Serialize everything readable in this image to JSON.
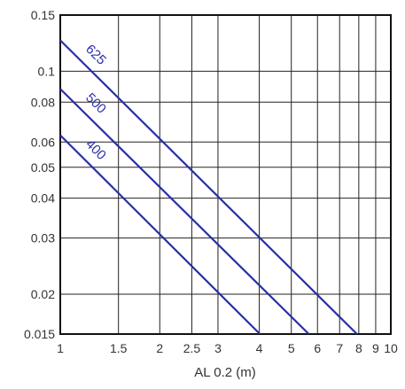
{
  "chart_data": {
    "type": "line",
    "title": "",
    "xlabel": "AL 0.2  (m)",
    "ylabel": "",
    "x_scale": "log",
    "y_scale": "log",
    "xlim": [
      1,
      10
    ],
    "ylim": [
      0.015,
      0.15
    ],
    "grid": true,
    "x_ticks": [
      1,
      1.5,
      2,
      2.5,
      3,
      4,
      5,
      6,
      7,
      8,
      9,
      10
    ],
    "x_tick_labels": [
      "1",
      "1.5",
      "2",
      "2.5",
      "3",
      "4",
      "5",
      "6",
      "7",
      "8",
      "9",
      "10"
    ],
    "y_ticks": [
      0.015,
      0.02,
      0.03,
      0.04,
      0.05,
      0.06,
      0.08,
      0.1,
      0.15
    ],
    "y_tick_labels": [
      "0.015",
      "0.02",
      "0.03",
      "0.04",
      "0.05",
      "0.06",
      "0.08",
      "0.1",
      "0.15"
    ],
    "line_color": "#2b2ea8",
    "series": [
      {
        "name": "625",
        "x": [
          1,
          7.9
        ],
        "y": [
          0.125,
          0.015
        ]
      },
      {
        "name": "500",
        "x": [
          1,
          5.65
        ],
        "y": [
          0.088,
          0.015
        ]
      },
      {
        "name": "400",
        "x": [
          1,
          4.02
        ],
        "y": [
          0.063,
          0.015
        ]
      }
    ]
  }
}
